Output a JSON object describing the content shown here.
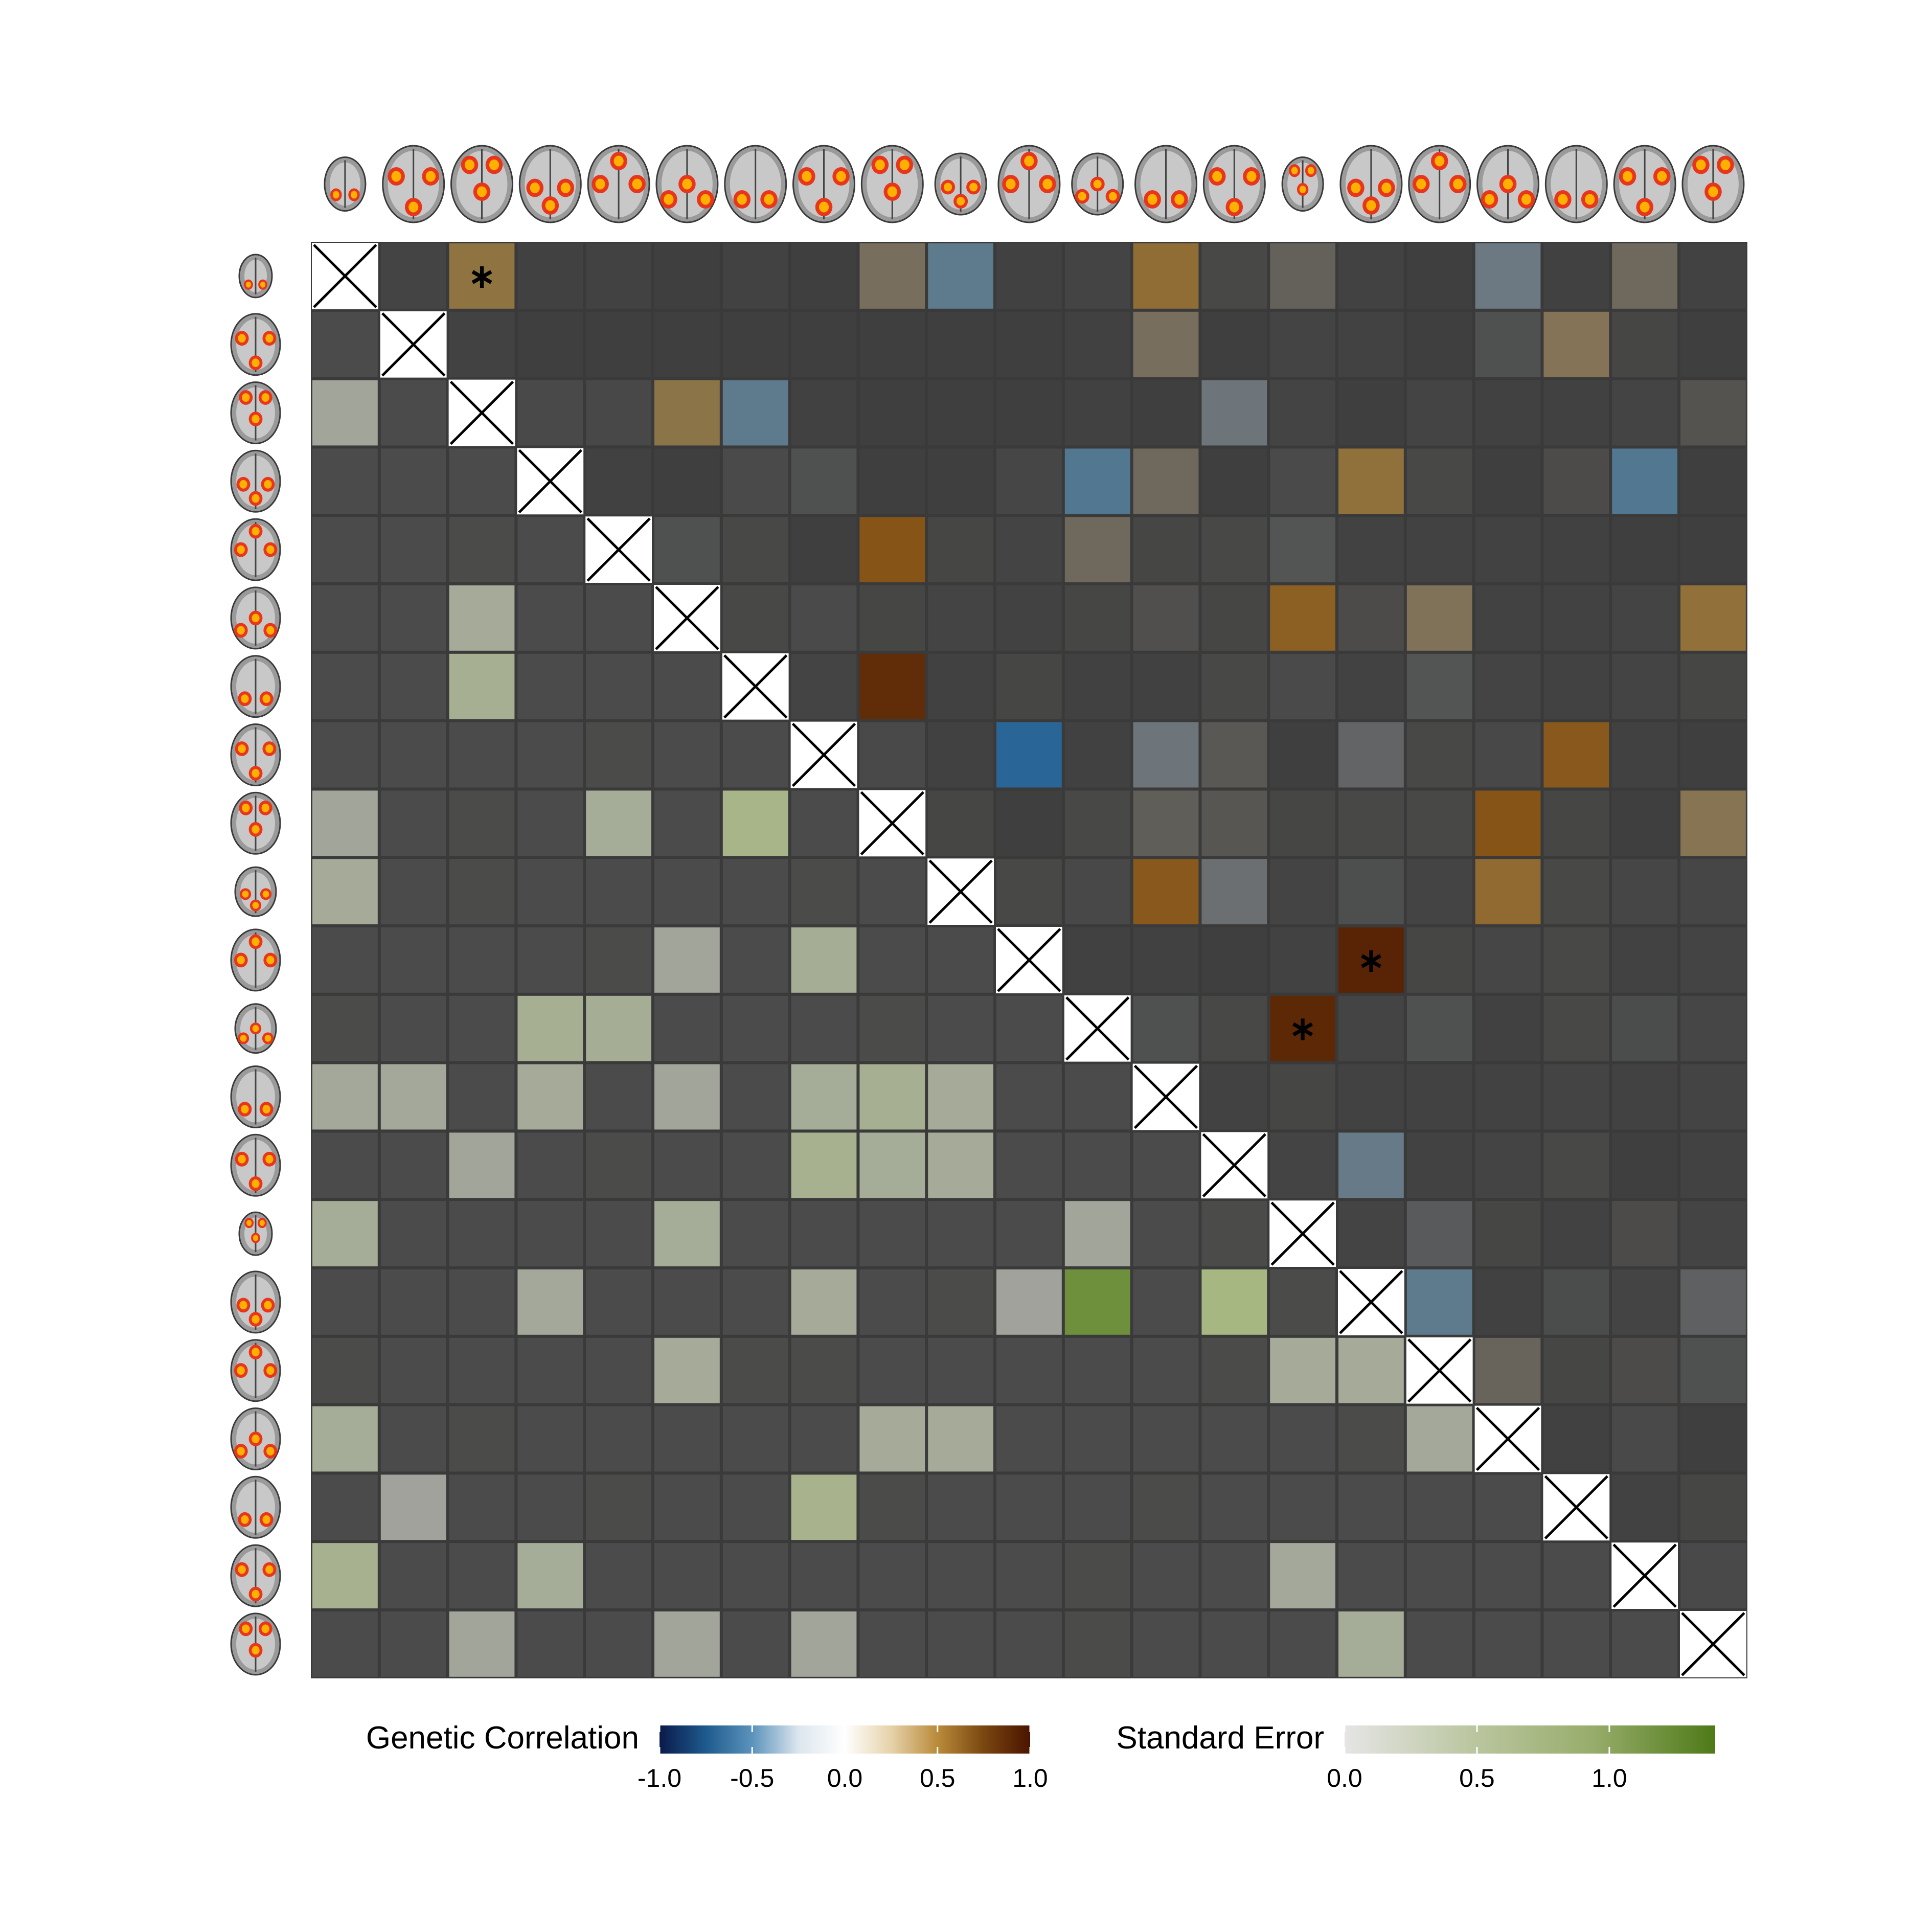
{
  "chart_data": {
    "type": "heatmap",
    "n": 21,
    "upper_triangle": {
      "measure": "Genetic Correlation",
      "values": [
        [
          null,
          0.04,
          0.48,
          0.02,
          0.03,
          0.01,
          0.03,
          0.01,
          0.3,
          -0.45,
          -0.02,
          0.04,
          0.55,
          0.06,
          0.2,
          0.03,
          -0.01,
          -0.35,
          0.02,
          0.25,
          -0.03
        ],
        [
          null,
          null,
          0.03,
          0.01,
          0.01,
          0.01,
          0.01,
          0.01,
          0.01,
          -0.01,
          0.01,
          0.02,
          0.3,
          -0.01,
          0.04,
          -0.03,
          0.01,
          -0.1,
          0.38,
          0.05,
          -0.01
        ],
        [
          null,
          null,
          null,
          0.07,
          -0.06,
          0.45,
          -0.45,
          0.02,
          0.01,
          0.01,
          0.01,
          0.02,
          0.01,
          -0.3,
          -0.04,
          0.01,
          0.04,
          -0.02,
          0.02,
          0.04,
          0.12
        ],
        [
          null,
          null,
          null,
          null,
          0.02,
          0.01,
          -0.07,
          -0.1,
          0.01,
          -0.01,
          -0.05,
          -0.5,
          0.25,
          -0.01,
          -0.07,
          0.5,
          0.06,
          -0.01,
          0.08,
          -0.5,
          0.01
        ],
        [
          null,
          null,
          null,
          null,
          null,
          -0.1,
          0.06,
          0.01,
          0.7,
          0.05,
          0.04,
          0.25,
          0.05,
          0.06,
          -0.12,
          0.03,
          0.03,
          -0.03,
          0.02,
          0.01,
          0.01
        ],
        [
          null,
          null,
          null,
          null,
          null,
          null,
          0.06,
          -0.07,
          0.05,
          0.04,
          -0.03,
          0.05,
          0.1,
          0.05,
          0.65,
          0.08,
          0.35,
          -0.03,
          0.03,
          0.04,
          0.52
        ],
        [
          null,
          null,
          null,
          null,
          null,
          null,
          null,
          0.04,
          0.88,
          -0.02,
          0.05,
          0.02,
          -0.02,
          0.06,
          -0.07,
          0.03,
          -0.12,
          0.04,
          -0.03,
          0.04,
          0.05
        ],
        [
          null,
          null,
          null,
          null,
          null,
          null,
          null,
          null,
          0.07,
          0.02,
          -0.7,
          0.02,
          -0.3,
          0.15,
          0.01,
          -0.2,
          0.06,
          -0.06,
          0.68,
          0.02,
          -0.01
        ],
        [
          null,
          null,
          null,
          null,
          null,
          null,
          null,
          null,
          null,
          0.05,
          -0.01,
          0.06,
          0.18,
          0.14,
          0.05,
          0.06,
          0.06,
          0.7,
          0.05,
          0.01,
          0.4
        ],
        [
          null,
          null,
          null,
          null,
          null,
          null,
          null,
          null,
          null,
          null,
          0.06,
          -0.06,
          0.68,
          -0.25,
          0.04,
          -0.09,
          0.04,
          0.58,
          0.06,
          -0.05,
          -0.05
        ],
        [
          null,
          null,
          null,
          null,
          null,
          null,
          null,
          null,
          null,
          null,
          null,
          0.02,
          -0.02,
          0.01,
          -0.03,
          0.92,
          0.05,
          -0.05,
          0.06,
          -0.03,
          0.04
        ],
        [
          null,
          null,
          null,
          null,
          null,
          null,
          null,
          null,
          null,
          null,
          null,
          null,
          -0.1,
          0.06,
          0.9,
          0.04,
          -0.1,
          0.02,
          0.06,
          -0.08,
          -0.05
        ],
        [
          null,
          null,
          null,
          null,
          null,
          null,
          null,
          null,
          null,
          null,
          null,
          null,
          null,
          0.03,
          0.05,
          0.03,
          0.03,
          0.03,
          -0.04,
          0.03,
          0.04
        ],
        [
          null,
          null,
          null,
          null,
          null,
          null,
          null,
          null,
          null,
          null,
          null,
          null,
          null,
          null,
          0.04,
          -0.4,
          0.03,
          -0.04,
          0.06,
          0.01,
          -0.03
        ],
        [
          null,
          null,
          null,
          null,
          null,
          null,
          null,
          null,
          null,
          null,
          null,
          null,
          null,
          null,
          null,
          0.04,
          -0.15,
          0.05,
          0.03,
          0.08,
          0.04
        ],
        [
          null,
          null,
          null,
          null,
          null,
          null,
          null,
          null,
          null,
          null,
          null,
          null,
          null,
          null,
          null,
          null,
          -0.45,
          -0.02,
          -0.08,
          0.04,
          -0.18
        ],
        [
          null,
          null,
          null,
          null,
          null,
          null,
          null,
          null,
          null,
          null,
          null,
          null,
          null,
          null,
          null,
          null,
          null,
          0.22,
          0.05,
          0.08,
          -0.1
        ],
        [
          null,
          null,
          null,
          null,
          null,
          null,
          null,
          null,
          null,
          null,
          null,
          null,
          null,
          null,
          null,
          null,
          null,
          null,
          0.02,
          0.07,
          -0.01
        ],
        [
          null,
          null,
          null,
          null,
          null,
          null,
          null,
          null,
          null,
          null,
          null,
          null,
          null,
          null,
          null,
          null,
          null,
          null,
          null,
          -0.03,
          0.05
        ],
        [
          null,
          null,
          null,
          null,
          null,
          null,
          null,
          null,
          null,
          null,
          null,
          null,
          null,
          null,
          null,
          null,
          null,
          null,
          null,
          null,
          0.07
        ],
        [
          null,
          null,
          null,
          null,
          null,
          null,
          null,
          null,
          null,
          null,
          null,
          null,
          null,
          null,
          null,
          null,
          null,
          null,
          null,
          null,
          null
        ]
      ]
    },
    "lower_triangle": {
      "measure": "Standard Error",
      "values": [
        [
          null,
          null,
          null,
          null,
          null,
          null,
          null,
          null,
          null,
          null,
          null,
          null,
          null,
          null,
          null,
          null,
          null,
          null,
          null,
          null,
          null
        ],
        [
          0.05,
          null,
          null,
          null,
          null,
          null,
          null,
          null,
          null,
          null,
          null,
          null,
          null,
          null,
          null,
          null,
          null,
          null,
          null,
          null,
          null
        ],
        [
          0.2,
          0.05,
          null,
          null,
          null,
          null,
          null,
          null,
          null,
          null,
          null,
          null,
          null,
          null,
          null,
          null,
          null,
          null,
          null,
          null,
          null
        ],
        [
          0.05,
          0.05,
          0.05,
          null,
          null,
          null,
          null,
          null,
          null,
          null,
          null,
          null,
          null,
          null,
          null,
          null,
          null,
          null,
          null,
          null,
          null
        ],
        [
          0.05,
          0.05,
          0.1,
          0.05,
          null,
          null,
          null,
          null,
          null,
          null,
          null,
          null,
          null,
          null,
          null,
          null,
          null,
          null,
          null,
          null,
          null
        ],
        [
          0.05,
          0.05,
          0.3,
          0.05,
          0.05,
          null,
          null,
          null,
          null,
          null,
          null,
          null,
          null,
          null,
          null,
          null,
          null,
          null,
          null,
          null,
          null
        ],
        [
          0.05,
          0.05,
          0.45,
          0.05,
          0.05,
          0.05,
          null,
          null,
          null,
          null,
          null,
          null,
          null,
          null,
          null,
          null,
          null,
          null,
          null,
          null,
          null
        ],
        [
          0.05,
          0.05,
          0.05,
          0.05,
          0.08,
          0.05,
          0.05,
          null,
          null,
          null,
          null,
          null,
          null,
          null,
          null,
          null,
          null,
          null,
          null,
          null,
          null
        ],
        [
          0.2,
          0.05,
          0.1,
          0.05,
          0.35,
          0.05,
          0.65,
          0.05,
          null,
          null,
          null,
          null,
          null,
          null,
          null,
          null,
          null,
          null,
          null,
          null,
          null
        ],
        [
          0.3,
          0.05,
          0.1,
          0.05,
          0.05,
          0.05,
          0.05,
          0.08,
          0.05,
          null,
          null,
          null,
          null,
          null,
          null,
          null,
          null,
          null,
          null,
          null,
          null
        ],
        [
          0.05,
          0.05,
          0.05,
          0.05,
          0.1,
          0.2,
          0.05,
          0.4,
          0.05,
          0.05,
          null,
          null,
          null,
          null,
          null,
          null,
          null,
          null,
          null,
          null,
          null
        ],
        [
          0.1,
          0.05,
          0.05,
          0.45,
          0.4,
          0.05,
          0.05,
          0.05,
          0.1,
          0.05,
          0.05,
          null,
          null,
          null,
          null,
          null,
          null,
          null,
          null,
          null,
          null
        ],
        [
          0.25,
          0.25,
          0.05,
          0.3,
          0.05,
          0.2,
          0.05,
          0.35,
          0.45,
          0.3,
          0.05,
          0.05,
          null,
          null,
          null,
          null,
          null,
          null,
          null,
          null,
          null
        ],
        [
          0.05,
          0.05,
          0.2,
          0.05,
          0.1,
          0.05,
          0.05,
          0.5,
          0.35,
          0.3,
          0.05,
          0.05,
          0.02,
          null,
          null,
          null,
          null,
          null,
          null,
          null,
          null
        ],
        [
          0.35,
          0.05,
          0.05,
          0.05,
          0.05,
          0.35,
          0.05,
          0.05,
          0.02,
          0.05,
          0.05,
          0.2,
          0.05,
          0.08,
          null,
          null,
          null,
          null,
          null,
          null,
          null
        ],
        [
          0.05,
          0.05,
          0.05,
          0.25,
          0.05,
          0.05,
          0.05,
          0.3,
          0.05,
          0.1,
          0.15,
          1.2,
          0.02,
          0.75,
          0.08,
          null,
          null,
          null,
          null,
          null,
          null
        ],
        [
          0.1,
          0.05,
          0.05,
          0.05,
          0.05,
          0.3,
          0.1,
          0.1,
          0.05,
          0.05,
          0.05,
          0.05,
          0.02,
          0.1,
          0.3,
          0.3,
          null,
          null,
          null,
          null,
          null
        ],
        [
          0.35,
          0.05,
          0.1,
          0.05,
          0.05,
          0.05,
          0.05,
          0.05,
          0.3,
          0.3,
          0.05,
          0.05,
          0.02,
          0.05,
          0.05,
          0.08,
          0.25,
          null,
          null,
          null,
          null
        ],
        [
          0.05,
          0.15,
          0.05,
          0.05,
          0.08,
          0.05,
          0.05,
          0.55,
          0.08,
          0.05,
          0.05,
          0.05,
          0.08,
          0.05,
          0.05,
          0.05,
          0.05,
          0.05,
          null,
          null,
          null
        ],
        [
          0.5,
          0.05,
          0.05,
          0.35,
          0.05,
          0.05,
          0.05,
          0.05,
          0.05,
          0.02,
          0.05,
          0.08,
          0.02,
          0.05,
          0.25,
          0.05,
          0.05,
          0.05,
          0.05,
          null,
          null
        ],
        [
          0.05,
          0.05,
          0.2,
          0.05,
          0.05,
          0.2,
          0.05,
          0.2,
          0.05,
          0.05,
          0.05,
          0.08,
          0.05,
          0.05,
          0.05,
          0.35,
          0.05,
          0.05,
          0.05,
          0.05,
          null
        ]
      ]
    },
    "significant_cells": [
      [
        0,
        2
      ],
      [
        10,
        15
      ],
      [
        11,
        14
      ]
    ],
    "diagonal": "cross",
    "icons": "brain-axial-slice",
    "legend": {
      "correlation": {
        "title": "Genetic Correlation",
        "range": [
          -1.0,
          1.0
        ],
        "ticks": [
          "-1.0",
          "-0.5",
          "0.0",
          "0.5",
          "1.0"
        ],
        "tick_values": [
          -1.0,
          -0.5,
          0.0,
          0.5,
          1.0
        ],
        "colors": [
          "#0a1a4a",
          "#1e5a8e",
          "#5b93bb",
          "#dce6ee",
          "#ffffff",
          "#e6d2aa",
          "#b98b3a",
          "#7a4610",
          "#4a1400"
        ]
      },
      "standard_error": {
        "title": "Standard Error",
        "range": [
          0.0,
          1.4
        ],
        "ticks": [
          "0.0",
          "0.5",
          "1.0"
        ],
        "tick_values": [
          0.0,
          0.5,
          1.0
        ],
        "colors": [
          "#e5e5e5",
          "#bcc7a2",
          "#98ad6c",
          "#4e7a18"
        ]
      },
      "placement": "bottom"
    }
  }
}
